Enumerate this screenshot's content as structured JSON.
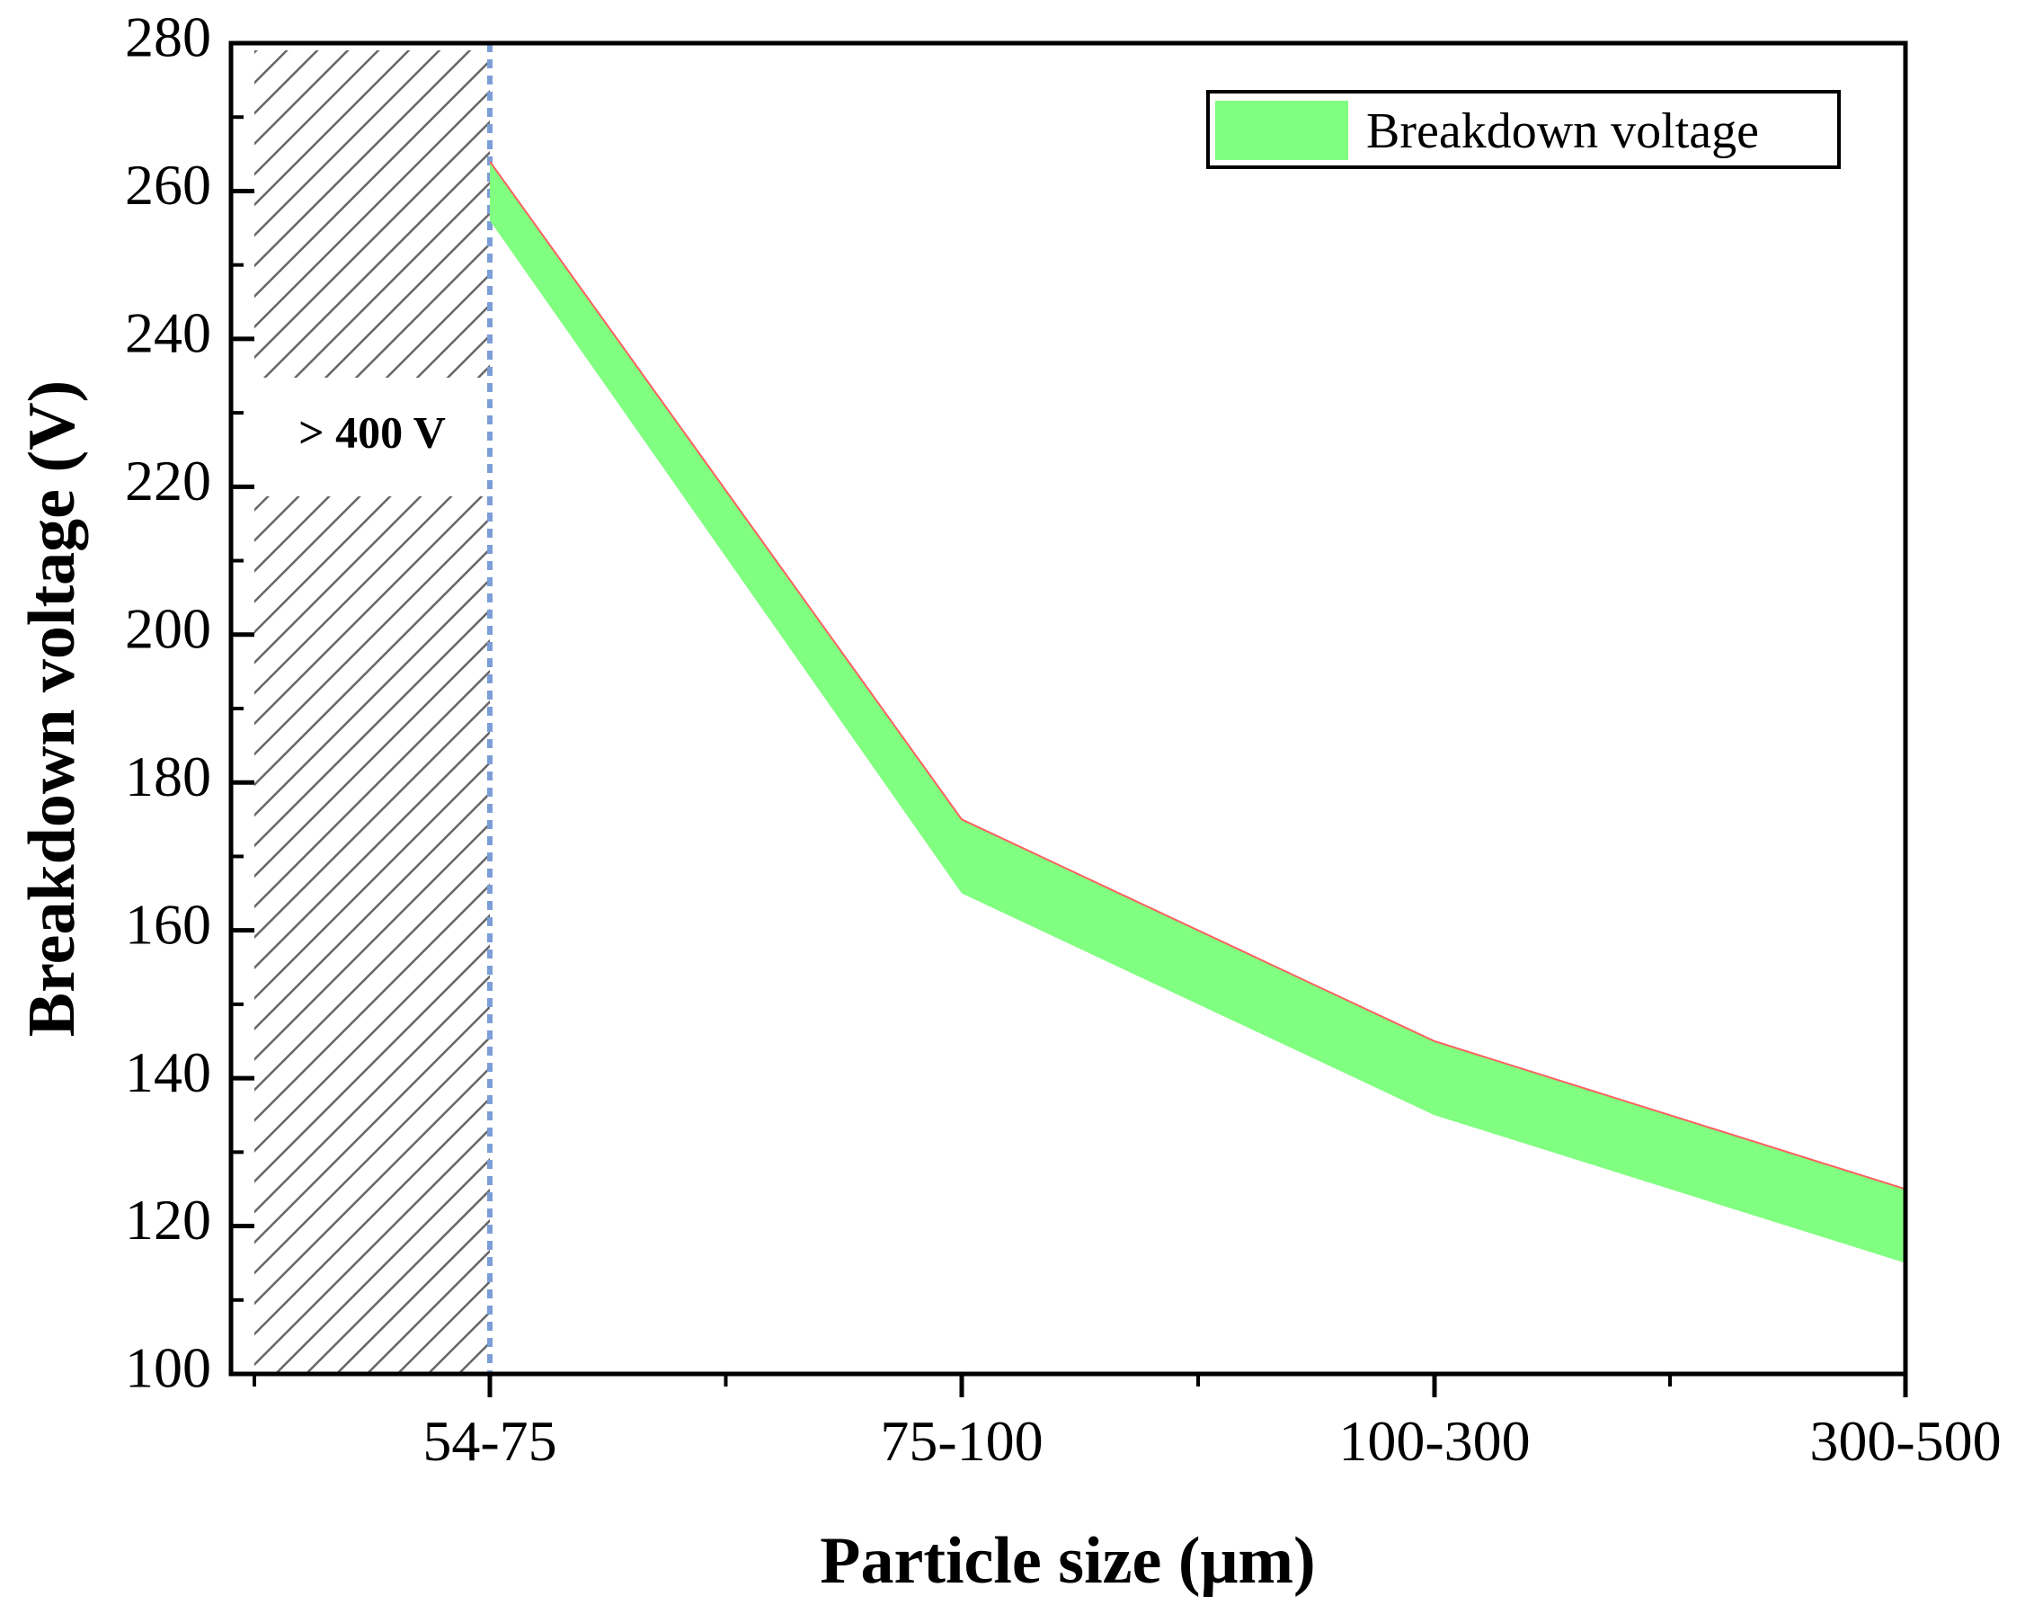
{
  "chart_data": {
    "type": "area",
    "title": "",
    "xlabel": "Particle size (μm)",
    "ylabel": "Breakdown voltage (V)",
    "ylim": [
      100,
      280
    ],
    "yticks": [
      100,
      120,
      140,
      160,
      180,
      200,
      220,
      240,
      260,
      280
    ],
    "categories": [
      "54-75",
      "75-100",
      "100-300",
      "300-500"
    ],
    "series": [
      {
        "name": "Breakdown voltage",
        "upper": [
          264,
          175,
          145,
          125
        ],
        "lower": [
          256,
          165,
          135,
          115
        ],
        "fill_color": "#80ff80",
        "edge_color": "#ff6060"
      }
    ],
    "legend": {
      "label": "Breakdown voltage",
      "position": "top-right"
    },
    "annotation": {
      "text": "> 400 V",
      "region": "below 54-75",
      "style": "hatched",
      "boundary_color": "#7c9ed8"
    }
  }
}
